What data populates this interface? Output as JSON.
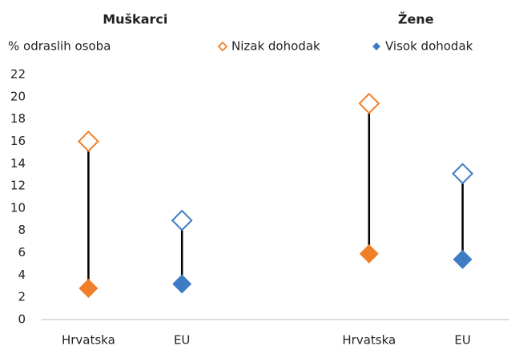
{
  "chart_data": {
    "type": "dot_range",
    "y_axis_label": "% odraslih osoba",
    "groups": [
      "Muškarci",
      "Žene"
    ],
    "categories": [
      "Hrvatska",
      "EU",
      null,
      "Hrvatska",
      "EU"
    ],
    "category_colors": [
      "#f07f2a",
      "#3e7cc4",
      null,
      "#f07f2a",
      "#3e7cc4"
    ],
    "series": [
      {
        "name": "Nizak dohodak",
        "color": "#f07f2a",
        "marker": "hollow-diamond",
        "values": [
          16,
          8.9,
          null,
          19.4,
          13.1
        ]
      },
      {
        "name": "Visok dohodak",
        "color": "#3e7cc4",
        "marker": "filled-diamond",
        "values": [
          2.8,
          3.2,
          null,
          5.9,
          5.4
        ]
      }
    ],
    "ylim": [
      0,
      22
    ],
    "yticks": [
      0,
      2,
      4,
      6,
      8,
      10,
      12,
      14,
      16,
      18,
      20,
      22
    ],
    "legend": "top",
    "grid": false
  }
}
